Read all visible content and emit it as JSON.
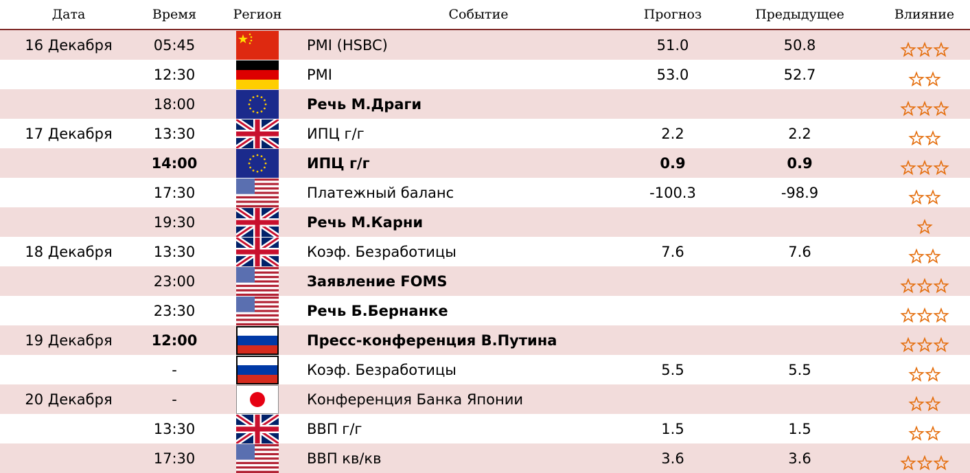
{
  "header": [
    "Дата",
    "Время",
    "Регион",
    "Событие",
    "Прогноз",
    "Предыдущее",
    "Влияние"
  ],
  "rows": [
    {
      "date": "16 Декабря",
      "time": "05:45",
      "event": "PMI (HSBC)",
      "forecast": "51.0",
      "previous": "50.8",
      "impact": 3
    },
    {
      "time": "12:30",
      "event": "PMI",
      "forecast": "53.0",
      "previous": "52.7",
      "impact": 2
    },
    {
      "time": "18:00",
      "event": "Речь М.Драги",
      "impact": 3
    },
    {
      "date": "17 Декабря",
      "time": "13:30",
      "event": "ИПЦ г/г",
      "forecast": "2.2",
      "previous": "2.2",
      "impact": 2
    },
    {
      "time": "14:00",
      "event": "ИПЦ г/г",
      "forecast": "0.9",
      "previous": "0.9",
      "impact": 3
    },
    {
      "time": "17:30",
      "event": "Платежный баланс",
      "forecast": "-100.3",
      "previous": "-98.9",
      "impact": 2
    },
    {
      "time": "19:30",
      "event": "Речь М.Карни",
      "impact": 1
    },
    {
      "date": "18 Декабря",
      "time": "13:30",
      "event": "Коэф. Безработицы",
      "forecast": "7.6",
      "previous": "7.6",
      "impact": 2
    },
    {
      "time": "23:00",
      "event": "Заявление FOMS",
      "impact": 3
    },
    {
      "time": "23:30",
      "event": "Речь Б.Бернанке",
      "impact": 3
    },
    {
      "date": "19 Декабря",
      "time": "12:00",
      "event": "Пресс-конференция В.Путина",
      "impact": 3
    },
    {
      "time": "-",
      "event": "Коэф. Безработицы",
      "forecast": "5.5",
      "previous": "5.5",
      "impact": 2
    },
    {
      "date": "20 Декабря",
      "time": "-",
      "event": "Конференция Банка Японии",
      "impact": 2
    },
    {
      "time": "13:30",
      "event": "ВВП г/г",
      "forecast": "1.5",
      "previous": "1.5",
      "impact": 2
    },
    {
      "time": "17:30",
      "event": "ВВП кв/кв",
      "forecast": "3.6",
      "previous": "3.6",
      "impact": 3
    }
  ]
}
